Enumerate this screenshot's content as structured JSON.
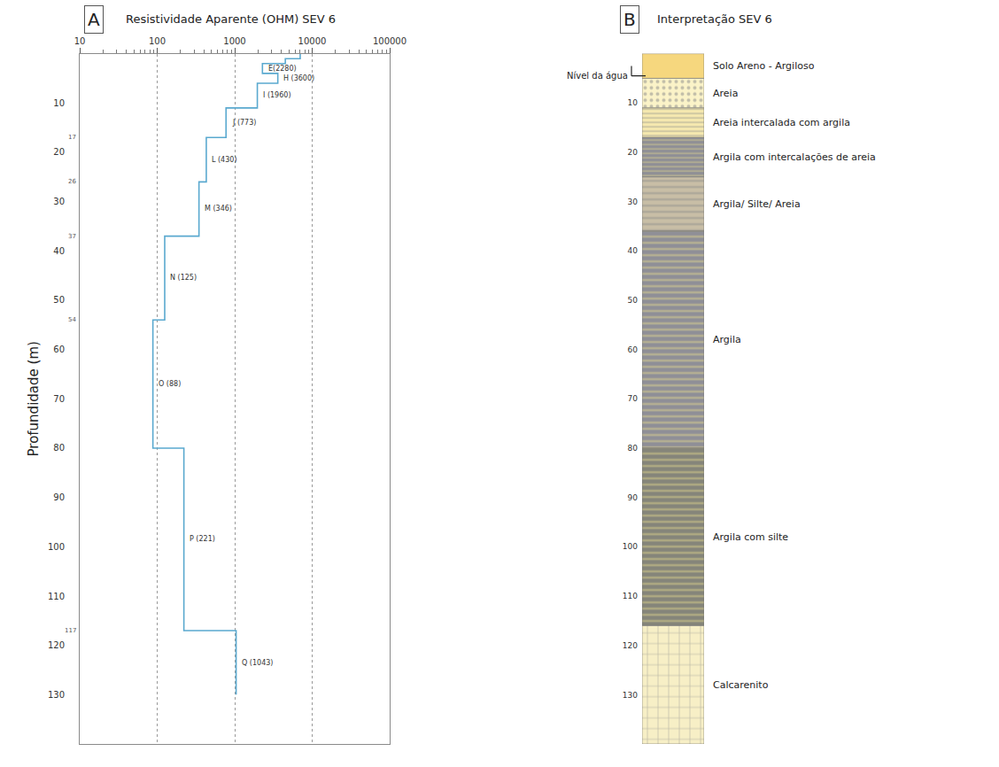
{
  "chart_data": {
    "panel": "A",
    "type": "line",
    "line_style": "step",
    "title": "Resistividade Aparente (OHM) SEV 6",
    "y_label": "Profundidade (m)",
    "color": "#5aa9cf",
    "log": "x",
    "grid": true,
    "xlim": [
      10,
      100000
    ],
    "xticks": [
      10,
      100,
      1000,
      10000,
      100000
    ],
    "ylim": [
      140,
      0
    ],
    "yticks": [
      10,
      20,
      30,
      40,
      50,
      60,
      70,
      80,
      90,
      100,
      110,
      120,
      130
    ],
    "layers": [
      {
        "top": 0,
        "bottom": 1,
        "value": 7000,
        "label": null
      },
      {
        "top": 1,
        "bottom": 2,
        "value": 4500,
        "label": null
      },
      {
        "top": 2,
        "bottom": 4,
        "value": 2280,
        "label": "E(2280)"
      },
      {
        "top": 4,
        "bottom": 6,
        "value": 3600,
        "label": "H (3600)"
      },
      {
        "top": 6,
        "bottom": 11,
        "value": 1960,
        "label": "I (1960)"
      },
      {
        "top": 11,
        "bottom": 17,
        "value": 773,
        "label": "J (773)"
      },
      {
        "top": 17,
        "bottom": 26,
        "value": 430,
        "label": "L (430)"
      },
      {
        "top": 26,
        "bottom": 37,
        "value": 346,
        "label": "M (346)"
      },
      {
        "top": 37,
        "bottom": 54,
        "value": 125,
        "label": "N (125)"
      },
      {
        "top": 54,
        "bottom": 80,
        "value": 88,
        "label": "O (88)"
      },
      {
        "top": 80,
        "bottom": 117,
        "value": 221,
        "label": "P (221)"
      },
      {
        "top": 117,
        "bottom": 130,
        "value": 1043,
        "label": "Q (1043)"
      }
    ],
    "boundary_labels": [
      17,
      26,
      37,
      54,
      117
    ]
  },
  "lithology": {
    "panel": "B",
    "title": "Interpretação SEV 6",
    "ylim": [
      140,
      0
    ],
    "yticks": [
      10,
      20,
      30,
      40,
      50,
      60,
      70,
      80,
      90,
      100,
      110,
      120,
      130
    ],
    "water_level": {
      "label": "Nível da água",
      "depth": 4.5
    },
    "units": [
      {
        "top": 0,
        "bottom": 5,
        "label": "Solo Areno - Argiloso",
        "color": "#f6d77e",
        "marker": "none"
      },
      {
        "top": 5,
        "bottom": 11,
        "label": "Areia",
        "color": "#fbf3c8",
        "marker": "dots"
      },
      {
        "top": 11,
        "bottom": 17,
        "label": "Areia intercalada com argila",
        "color": "#f7eab0",
        "marker": "lines"
      },
      {
        "top": 17,
        "bottom": 25,
        "label": "Argila com intercalações de areia",
        "color": "#8e8e96",
        "marker": "lines"
      },
      {
        "top": 25,
        "bottom": 36,
        "label": "Argila/ Silte/ Areia",
        "color": "#c8bea6",
        "marker": "dashes"
      },
      {
        "top": 36,
        "bottom": 80,
        "label": "Argila",
        "color": "#8f8f97",
        "marker": "dashes"
      },
      {
        "top": 80,
        "bottom": 116,
        "label": "Argila com silte",
        "color": "#85857a",
        "marker": "dashes"
      },
      {
        "top": 116,
        "bottom": 140,
        "label": "Calcarenito",
        "color": "#f7efc6",
        "marker": "bricks"
      }
    ]
  }
}
